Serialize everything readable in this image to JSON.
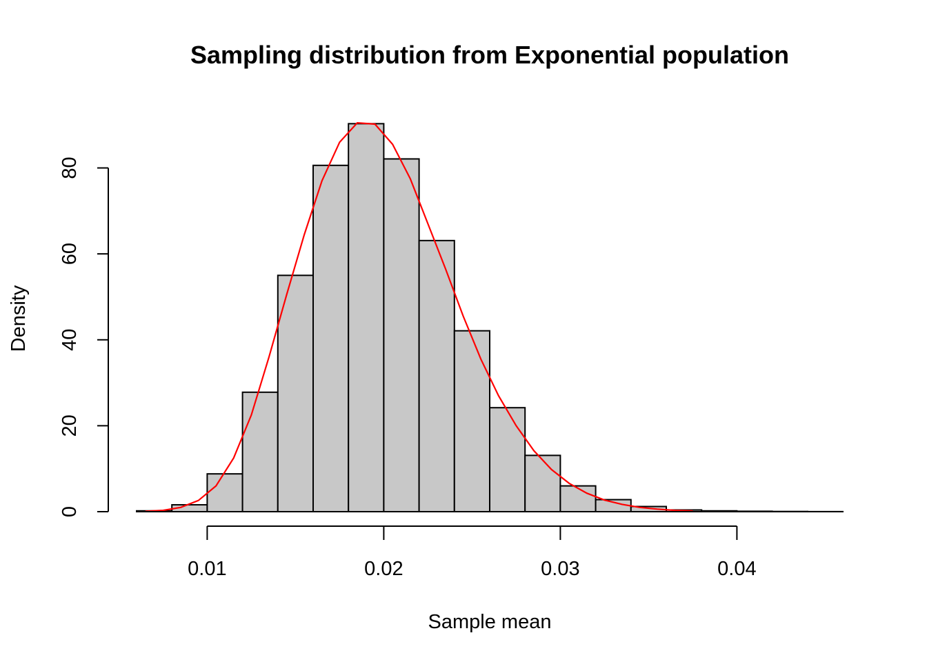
{
  "chart_data": {
    "type": "histogram",
    "title": "Sampling distribution from Exponential population",
    "xlabel": "Sample mean",
    "ylabel": "Density",
    "xlim": [
      0.006,
      0.046
    ],
    "ylim": [
      0,
      91
    ],
    "x_ticks": [
      0.01,
      0.02,
      0.03,
      0.04
    ],
    "x_tick_labels": [
      "0.01",
      "0.02",
      "0.03",
      "0.04"
    ],
    "y_ticks": [
      0,
      20,
      40,
      60,
      80
    ],
    "y_tick_labels": [
      "0",
      "20",
      "40",
      "60",
      "80"
    ],
    "grid": false,
    "bars": {
      "bin_edges": [
        0.006,
        0.008,
        0.01,
        0.012,
        0.014,
        0.016,
        0.018,
        0.02,
        0.022,
        0.024,
        0.026,
        0.028,
        0.03,
        0.032,
        0.034,
        0.036,
        0.038,
        0.04,
        0.042,
        0.044,
        0.046
      ],
      "density": [
        0.2,
        1.6,
        8.8,
        27.8,
        55.0,
        80.6,
        90.3,
        82.1,
        63.1,
        42.1,
        24.2,
        13.1,
        6.0,
        2.8,
        1.2,
        0.4,
        0.2,
        0.1,
        0.05,
        0.02
      ],
      "fill": "#c8c8c8",
      "stroke": "#000000"
    },
    "series": [
      {
        "type": "line",
        "color": "#ff0000",
        "x": [
          0.0065,
          0.0075,
          0.0085,
          0.0095,
          0.0105,
          0.0115,
          0.0125,
          0.0135,
          0.0145,
          0.0155,
          0.0165,
          0.0175,
          0.0185,
          0.0195,
          0.0205,
          0.0215,
          0.0225,
          0.0235,
          0.0245,
          0.0255,
          0.0265,
          0.0275,
          0.0285,
          0.0295,
          0.0305,
          0.0315,
          0.0325,
          0.0335,
          0.0345,
          0.0355,
          0.0365,
          0.0375
        ],
        "y": [
          0.1,
          0.3,
          1.0,
          2.6,
          6.0,
          12.5,
          22.5,
          36.0,
          50.5,
          64.5,
          77.0,
          86.0,
          90.5,
          90.2,
          85.5,
          77.5,
          67.0,
          56.5,
          45.5,
          35.5,
          27.0,
          20.0,
          14.2,
          9.8,
          6.6,
          4.3,
          2.7,
          1.7,
          1.0,
          0.6,
          0.3,
          0.2
        ]
      }
    ]
  }
}
